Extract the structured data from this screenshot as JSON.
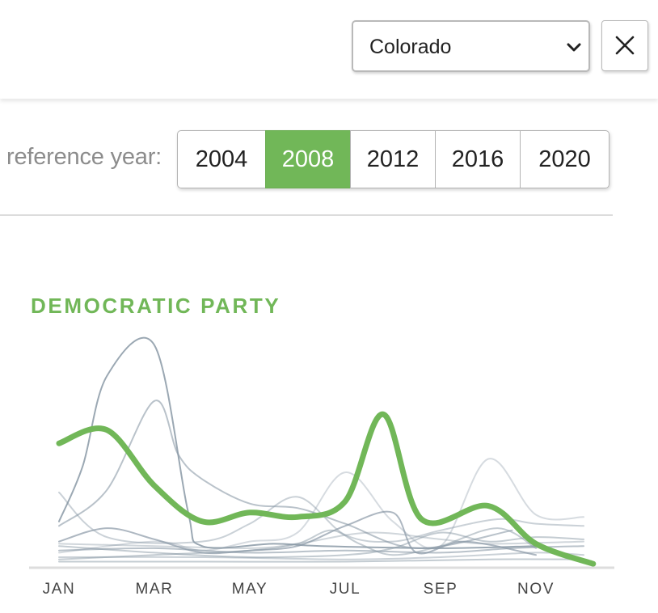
{
  "header": {
    "state_select": {
      "value": "Colorado"
    },
    "close_icon": "close-icon",
    "select_icon": "chevron-down-icon"
  },
  "reference_year": {
    "label": "reference year:",
    "options": [
      "2004",
      "2008",
      "2012",
      "2016",
      "2020"
    ],
    "selected": "2008",
    "accent_color": "#71b758"
  },
  "chart_data": {
    "type": "line",
    "title": "DEMOCRATIC PARTY",
    "xlabel": "",
    "ylabel": "",
    "x_ticks": [
      "JAN",
      "MAR",
      "MAY",
      "JUL",
      "SEP",
      "NOV"
    ],
    "xlim": [
      0,
      11.5
    ],
    "ylim": [
      0,
      100
    ],
    "grid": false,
    "highlight_color": "#71b758",
    "background_color": "#8a99a6",
    "series": [
      {
        "year": "2008",
        "highlight": true,
        "values": [
          [
            0,
            55
          ],
          [
            1,
            61
          ],
          [
            2,
            36
          ],
          [
            3,
            20
          ],
          [
            4,
            24
          ],
          [
            5,
            22
          ],
          [
            6,
            29
          ],
          [
            6.8,
            68
          ],
          [
            7.6,
            21
          ],
          [
            9,
            27
          ],
          [
            10,
            10
          ],
          [
            11.2,
            1
          ]
        ]
      },
      {
        "values": [
          [
            0,
            20
          ],
          [
            0.5,
            45
          ],
          [
            1,
            85
          ],
          [
            2,
            99
          ],
          [
            2.7,
            25
          ],
          [
            3,
            9
          ],
          [
            4.5,
            10
          ],
          [
            5.5,
            9
          ],
          [
            8,
            8
          ],
          [
            10,
            9
          ]
        ]
      },
      {
        "values": [
          [
            0,
            18
          ],
          [
            1,
            34
          ],
          [
            2,
            74
          ],
          [
            2.5,
            50
          ],
          [
            3,
            39
          ],
          [
            4,
            28
          ],
          [
            5,
            26
          ],
          [
            6,
            19
          ],
          [
            7.5,
            8
          ],
          [
            9.5,
            16
          ]
        ]
      },
      {
        "values": [
          [
            0,
            11
          ],
          [
            1,
            17
          ],
          [
            2,
            12
          ],
          [
            3,
            6
          ],
          [
            4,
            7
          ],
          [
            5,
            9
          ],
          [
            6,
            18
          ],
          [
            7,
            24
          ],
          [
            7.5,
            6
          ],
          [
            8.5,
            11
          ],
          [
            10,
            5
          ]
        ]
      },
      {
        "values": [
          [
            0,
            3
          ],
          [
            2,
            5
          ],
          [
            4,
            7
          ],
          [
            5,
            10
          ],
          [
            5.7,
            16
          ],
          [
            6.3,
            10
          ],
          [
            7,
            5
          ],
          [
            8,
            9
          ],
          [
            9.2,
            17
          ],
          [
            10,
            8
          ]
        ]
      },
      {
        "values": [
          [
            0,
            6
          ],
          [
            2,
            11
          ],
          [
            3,
            7
          ],
          [
            4,
            11
          ],
          [
            5,
            15
          ],
          [
            6,
            42
          ],
          [
            7,
            20
          ],
          [
            8,
            9
          ],
          [
            9,
            48
          ],
          [
            10,
            23
          ],
          [
            11,
            22
          ]
        ]
      },
      {
        "values": [
          [
            0,
            33
          ],
          [
            1,
            13
          ],
          [
            3,
            11
          ],
          [
            4,
            19
          ],
          [
            5,
            31
          ],
          [
            6,
            14
          ],
          [
            7,
            11
          ],
          [
            8,
            16
          ],
          [
            9.2,
            21
          ],
          [
            10,
            19
          ],
          [
            11,
            18
          ]
        ]
      },
      {
        "values": [
          [
            0,
            9
          ],
          [
            2,
            6
          ],
          [
            4,
            4
          ],
          [
            6,
            5
          ],
          [
            7,
            8
          ],
          [
            8,
            15
          ],
          [
            9,
            11
          ],
          [
            10,
            13
          ],
          [
            11,
            12
          ]
        ]
      },
      {
        "values": [
          [
            0,
            7
          ],
          [
            2,
            8
          ],
          [
            4,
            6
          ],
          [
            6,
            7
          ],
          [
            8,
            6
          ],
          [
            9.5,
            8
          ],
          [
            11,
            9
          ]
        ]
      },
      {
        "values": [
          [
            0,
            4
          ],
          [
            3,
            4
          ],
          [
            6,
            3
          ],
          [
            8,
            4
          ],
          [
            10,
            6
          ],
          [
            11,
            5
          ]
        ]
      },
      {
        "values": [
          [
            0,
            2
          ],
          [
            3,
            2
          ],
          [
            6,
            2
          ],
          [
            9,
            3
          ],
          [
            11,
            3
          ]
        ]
      },
      {
        "values": [
          [
            0,
            10
          ],
          [
            2,
            9
          ],
          [
            4,
            8
          ],
          [
            5,
            10
          ],
          [
            6.5,
            15
          ],
          [
            8,
            12
          ],
          [
            9,
            10
          ],
          [
            11,
            11
          ]
        ]
      }
    ]
  }
}
